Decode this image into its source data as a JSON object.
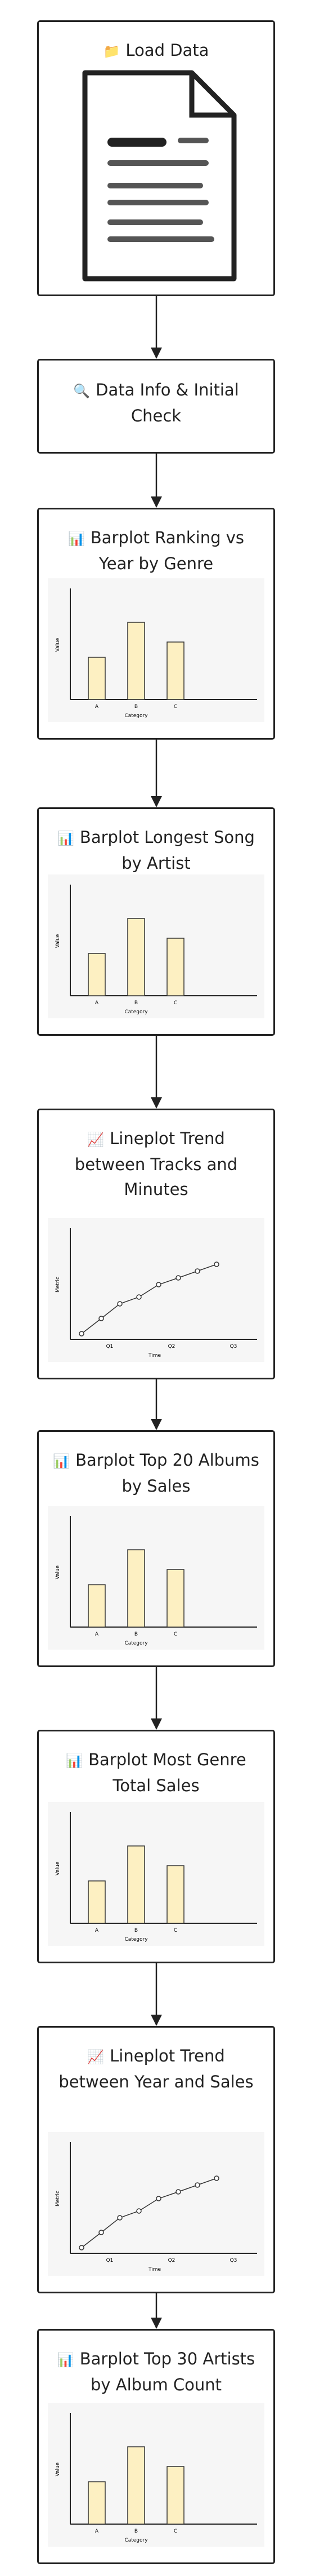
{
  "nodes": [
    {
      "icon": "📁",
      "label": "Load Data"
    },
    {
      "icon": "🔍",
      "label": "Data Info & Initial Check"
    },
    {
      "icon": "📊",
      "label": "Barplot Ranking vs Year by Genre",
      "chart": {
        "type": "bar",
        "y_label": "Value",
        "x_label": "Category",
        "categories": [
          "A",
          "B",
          "C"
        ]
      }
    },
    {
      "icon": "📊",
      "label": "Barplot Longest Song by Artist",
      "chart": {
        "type": "bar",
        "y_label": "Value",
        "x_label": "Category",
        "categories": [
          "A",
          "B",
          "C"
        ]
      }
    },
    {
      "icon": "📈",
      "label": "Lineplot Trend between Tracks and Minutes",
      "chart": {
        "type": "line",
        "y_label": "Metric",
        "x_label": "Time",
        "categories": [
          "Q1",
          "Q2",
          "Q3"
        ]
      }
    },
    {
      "icon": "📊",
      "label": "Barplot Top 20 Albums by Sales",
      "chart": {
        "type": "bar",
        "y_label": "Value",
        "x_label": "Category",
        "categories": [
          "A",
          "B",
          "C"
        ]
      }
    },
    {
      "icon": "📊",
      "label": "Barplot Most Genre Total Sales",
      "chart": {
        "type": "bar",
        "y_label": "Value",
        "x_label": "Category",
        "categories": [
          "A",
          "B",
          "C"
        ]
      }
    },
    {
      "icon": "📈",
      "label": "Lineplot Trend between Year and Sales",
      "chart": {
        "type": "line",
        "y_label": "Metric",
        "x_label": "Time",
        "categories": [
          "Q1",
          "Q2",
          "Q3"
        ]
      }
    },
    {
      "icon": "📊",
      "label": "Barplot Top 30 Artists by Album Count",
      "chart": {
        "type": "bar",
        "y_label": "Value",
        "x_label": "Category",
        "categories": [
          "A",
          "B",
          "C"
        ]
      }
    }
  ]
}
